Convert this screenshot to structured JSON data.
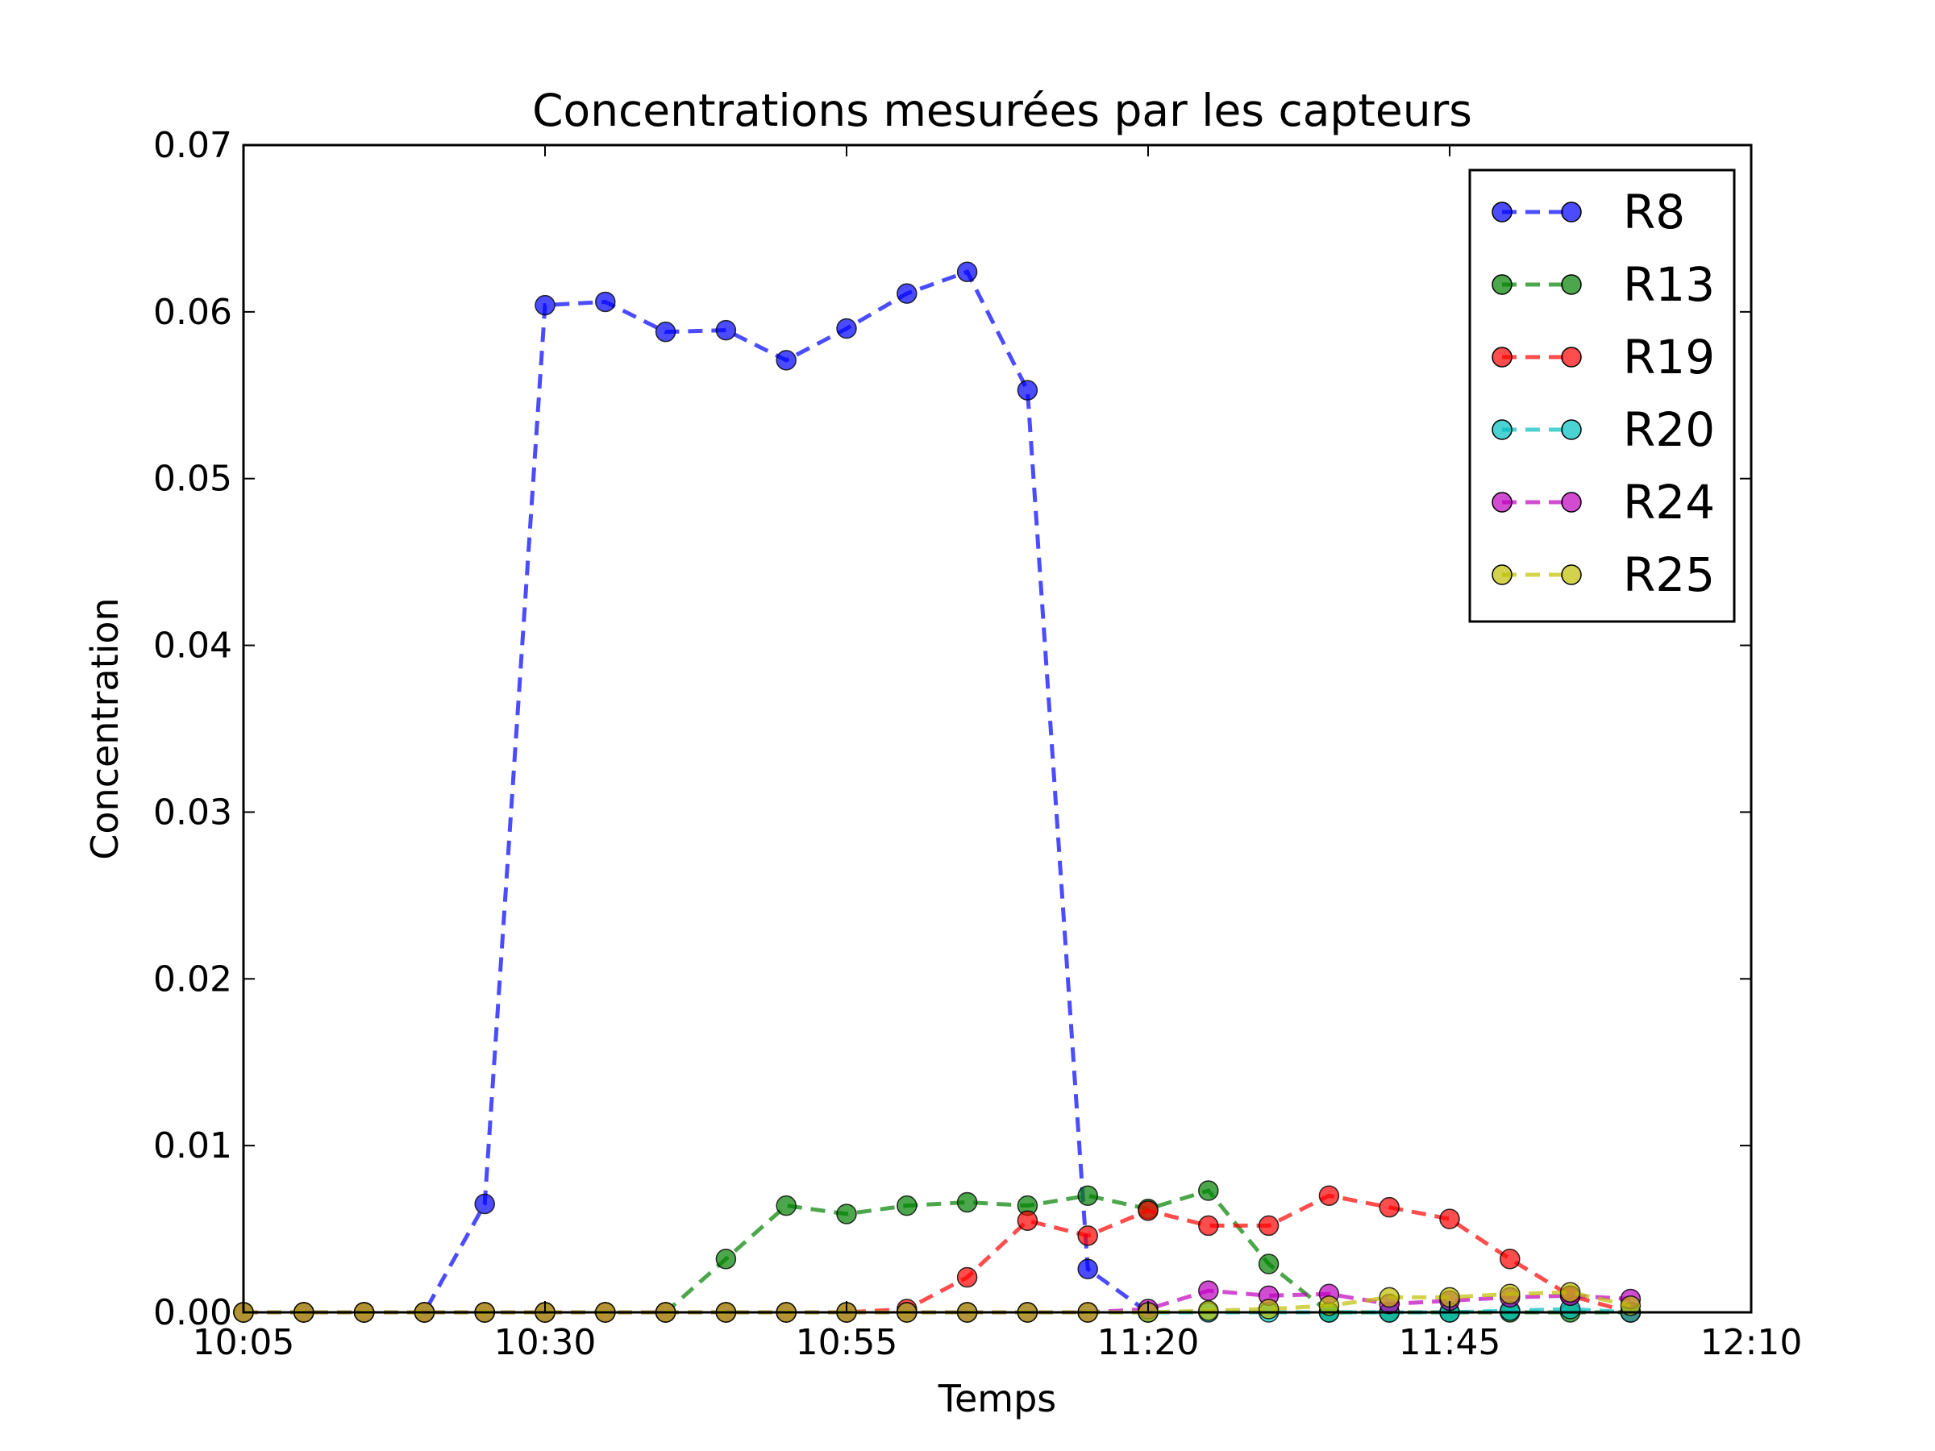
{
  "chart_data": {
    "type": "line",
    "title": "Concentrations mesurées par les capteurs",
    "xlabel": "Temps",
    "ylabel": "Concentration",
    "xlim": [
      "10:05",
      "12:10"
    ],
    "ylim": [
      0,
      0.07
    ],
    "x_ticks": [
      "10:05",
      "10:30",
      "10:55",
      "11:20",
      "11:45",
      "12:10"
    ],
    "y_ticks": [
      "0.00",
      "0.01",
      "0.02",
      "0.03",
      "0.04",
      "0.05",
      "0.06",
      "0.07"
    ],
    "grid": false,
    "legend_position": "top-right",
    "line_style": "dashed",
    "marker": "circle",
    "x": [
      "10:05",
      "10:10",
      "10:15",
      "10:20",
      "10:25",
      "10:30",
      "10:35",
      "10:40",
      "10:45",
      "10:50",
      "10:55",
      "11:00",
      "11:05",
      "11:10",
      "11:15",
      "11:20",
      "11:25",
      "11:30",
      "11:35",
      "11:40",
      "11:45",
      "11:50",
      "11:55",
      "12:00"
    ],
    "series": [
      {
        "name": "R8",
        "color": "#0000ff",
        "values": [
          0,
          0,
          0,
          0,
          0.0065,
          0.0604,
          0.0606,
          0.0588,
          0.0589,
          0.0571,
          0.059,
          0.0611,
          0.0624,
          0.0553,
          0.0026,
          0,
          null,
          null,
          null,
          null,
          null,
          null,
          null,
          null
        ]
      },
      {
        "name": "R13",
        "color": "#008000",
        "values": [
          0,
          0,
          0,
          0,
          0,
          0,
          0,
          0,
          0.0032,
          0.0064,
          0.0059,
          0.0064,
          0.0066,
          0.0064,
          0.007,
          0.0062,
          0.0073,
          0.0029,
          0,
          0,
          0,
          0,
          0,
          0
        ]
      },
      {
        "name": "R19",
        "color": "#ff0000",
        "values": [
          0,
          0,
          0,
          0,
          0,
          0,
          0,
          0,
          0,
          0,
          0,
          0.0002,
          0.0021,
          0.0055,
          0.0046,
          0.0061,
          0.0052,
          0.0052,
          0.007,
          0.0063,
          0.0056,
          0.0032,
          0.001,
          0
        ]
      },
      {
        "name": "R20",
        "color": "#00bfbf",
        "values": [
          0,
          0,
          0,
          0,
          0,
          0,
          0,
          0,
          0,
          0,
          0,
          0,
          0,
          0,
          0,
          0,
          0,
          0,
          0,
          0,
          0,
          0.0001,
          0.0002,
          0
        ]
      },
      {
        "name": "R24",
        "color": "#bf00bf",
        "values": [
          0,
          0,
          0,
          0,
          0,
          0,
          0,
          0,
          0,
          0,
          0,
          0,
          0,
          0,
          0,
          0.0002,
          0.0013,
          0.001,
          0.0011,
          0.0005,
          0.0007,
          0.0009,
          0.001,
          0.0008
        ]
      },
      {
        "name": "R25",
        "color": "#bfbf00",
        "values": [
          0,
          0,
          0,
          0,
          0,
          0,
          0,
          0,
          0,
          0,
          0,
          0,
          0,
          0,
          0,
          0,
          0.0001,
          0.0002,
          0.0004,
          0.0009,
          0.0009,
          0.0011,
          0.0012,
          0.0004
        ]
      }
    ]
  }
}
